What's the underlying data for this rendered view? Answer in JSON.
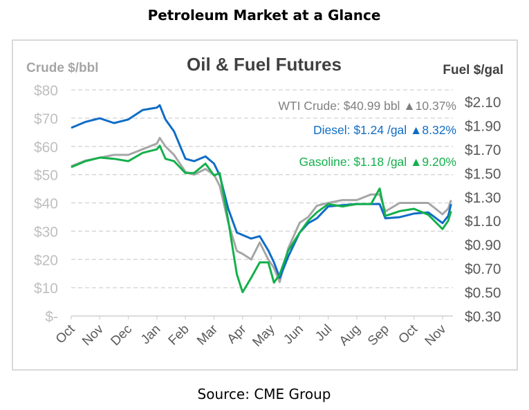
{
  "page_title": "Petroleum Market at a Glance",
  "source": "Source: CME Group",
  "chart_data": {
    "type": "line",
    "title": "Oil & Fuel Futures",
    "ylabel_left": "Crude $/bbl",
    "ylabel_right": "Fuel $/gal",
    "ylim_left": [
      0,
      80
    ],
    "ylim_right": [
      0.3,
      2.1
    ],
    "left_ticks": [
      "$-",
      "$10",
      "$20",
      "$30",
      "$40",
      "$50",
      "$60",
      "$70",
      "$80"
    ],
    "right_ticks": [
      "$0.30",
      "$0.50",
      "$0.70",
      "$0.90",
      "$1.10",
      "$1.30",
      "$1.50",
      "$1.70",
      "$1.90",
      "$2.10"
    ],
    "x_ticks": [
      "Oct",
      "Nov",
      "Dec",
      "Jan",
      "Feb",
      "Mar",
      "Apr",
      "May",
      "Jun",
      "Jul",
      "Aug",
      "Sep",
      "Oct",
      "Nov"
    ],
    "grid": true,
    "x": [
      0,
      0.5,
      1,
      1.5,
      2,
      2.5,
      3,
      3.1,
      3.3,
      3.6,
      4,
      4.3,
      4.7,
      5,
      5.2,
      5.5,
      5.8,
      6,
      6.3,
      6.6,
      6.9,
      7.1,
      7.3,
      7.6,
      8,
      8.3,
      8.6,
      9,
      9.5,
      10,
      10.5,
      10.8,
      11,
      11.5,
      12,
      12.5,
      13,
      13.2,
      13.3
    ],
    "series": [
      {
        "name": "WTI Crude",
        "axis": "left",
        "color": "#a6a6a6",
        "values": [
          53,
          55,
          56,
          57,
          57,
          59,
          61,
          63,
          60,
          57,
          51,
          50,
          52,
          50,
          46,
          33,
          23,
          22,
          20,
          26,
          20,
          17,
          12,
          24,
          33,
          35,
          39,
          40,
          41,
          41,
          43,
          43,
          37,
          40,
          40,
          40,
          36,
          38,
          41
        ]
      },
      {
        "name": "Diesel",
        "axis": "right",
        "color": "#0f6cc6",
        "values": [
          1.88,
          1.93,
          1.96,
          1.92,
          1.95,
          2.03,
          2.05,
          2.07,
          1.95,
          1.85,
          1.62,
          1.6,
          1.64,
          1.58,
          1.48,
          1.2,
          1.0,
          0.98,
          0.95,
          0.97,
          0.85,
          0.75,
          0.62,
          0.8,
          1.0,
          1.08,
          1.12,
          1.22,
          1.23,
          1.24,
          1.24,
          1.24,
          1.12,
          1.13,
          1.16,
          1.17,
          1.08,
          1.14,
          1.24
        ]
      },
      {
        "name": "Gasoline",
        "axis": "right",
        "color": "#13b04b",
        "values": [
          1.55,
          1.6,
          1.63,
          1.62,
          1.6,
          1.67,
          1.7,
          1.73,
          1.62,
          1.6,
          1.5,
          1.5,
          1.58,
          1.48,
          1.5,
          1.1,
          0.65,
          0.5,
          0.62,
          0.75,
          0.75,
          0.58,
          0.65,
          0.85,
          1.0,
          1.1,
          1.17,
          1.24,
          1.22,
          1.24,
          1.24,
          1.37,
          1.14,
          1.18,
          1.2,
          1.15,
          1.03,
          1.1,
          1.18
        ]
      }
    ],
    "annotations": [
      {
        "label": "WTI Crude:",
        "price": "$40.99 bbl",
        "change": "10.37%",
        "color": "#808080"
      },
      {
        "label": "Diesel:",
        "price": "$1.24 /gal",
        "change": "8.32%",
        "color": "#0f6cc6"
      },
      {
        "label": "Gasoline:",
        "price": "$1.18 /gal",
        "change": "9.20%",
        "color": "#13b04b"
      }
    ]
  }
}
